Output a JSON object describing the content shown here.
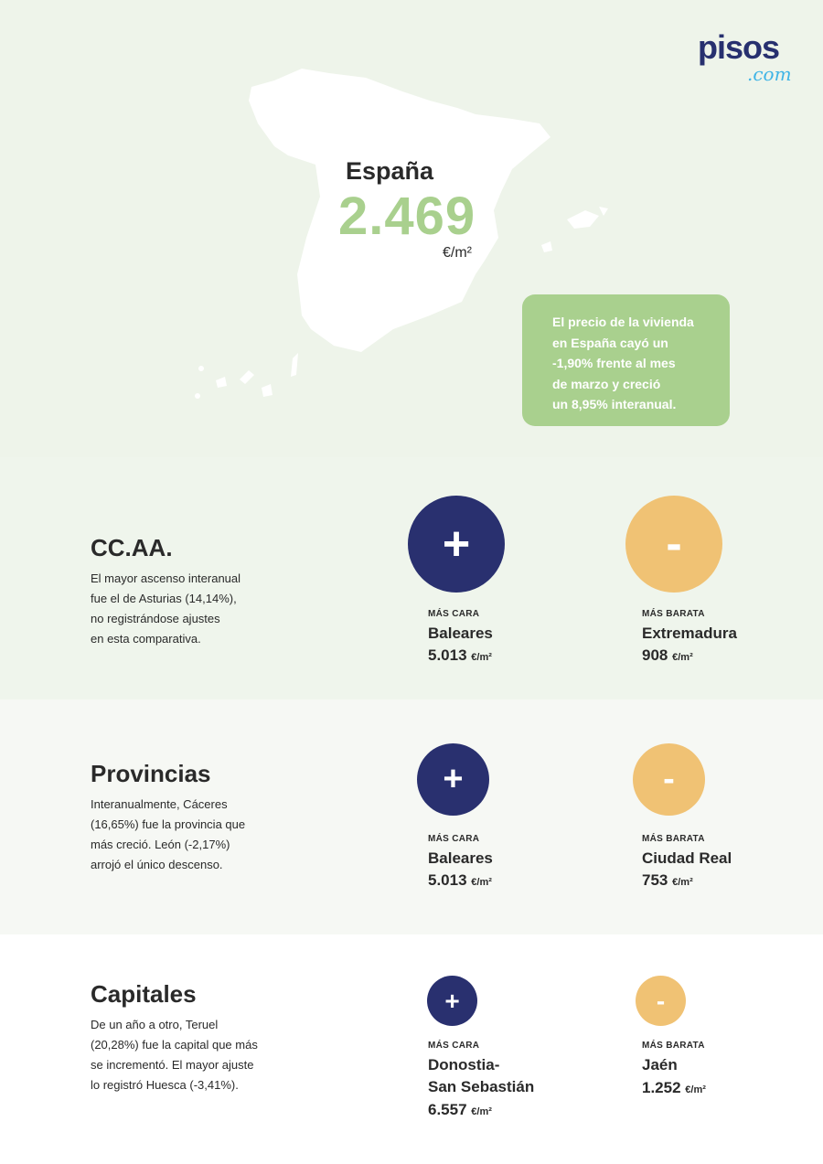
{
  "logo": {
    "text": "pisos",
    "suffix": ".com"
  },
  "hero": {
    "country": "España",
    "price": "2.469",
    "unit": "€/m²",
    "note": "El precio de la vivienda\nen España cayó un\n-1,90% frente al mes\nde marzo y creció\nun 8,95% interanual."
  },
  "colors": {
    "navy": "#29306f",
    "yellow": "#f0c274",
    "green": "#a9d08e"
  },
  "sections": [
    {
      "title": "CC.AA.",
      "desc": "El mayor ascenso interanual\nfue el de Asturias (14,14%),\nno registrándose ajustes\nen esta comparativa.",
      "high": {
        "icon": "plus-icon",
        "symbol": "+",
        "label": "MÁS CARA",
        "name": "Baleares",
        "value": "5.013",
        "unit": "€/m²"
      },
      "low": {
        "icon": "minus-icon",
        "symbol": "-",
        "label": "MÁS BARATA",
        "name": "Extremadura",
        "value": "908",
        "unit": "€/m²"
      }
    },
    {
      "title": "Provincias",
      "desc": "Interanualmente, Cáceres\n(16,65%) fue la provincia que\nmás creció. León (-2,17%)\narrojó el único descenso.",
      "high": {
        "icon": "plus-icon",
        "symbol": "+",
        "label": "MÁS CARA",
        "name": "Baleares",
        "value": "5.013",
        "unit": "€/m²"
      },
      "low": {
        "icon": "minus-icon",
        "symbol": "-",
        "label": "MÁS BARATA",
        "name": "Ciudad Real",
        "value": "753",
        "unit": "€/m²"
      }
    },
    {
      "title": "Capitales",
      "desc": "De un año a otro, Teruel\n(20,28%) fue la capital que más\nse incrementó. El mayor ajuste\nlo registró Huesca (-3,41%).",
      "high": {
        "icon": "plus-icon",
        "symbol": "+",
        "label": "MÁS CARA",
        "name": "Donostia-\nSan Sebastián",
        "value": "6.557",
        "unit": "€/m²"
      },
      "low": {
        "icon": "minus-icon",
        "symbol": "-",
        "label": "MÁS BARATA",
        "name": "Jaén",
        "value": "1.252",
        "unit": "€/m²"
      }
    }
  ]
}
